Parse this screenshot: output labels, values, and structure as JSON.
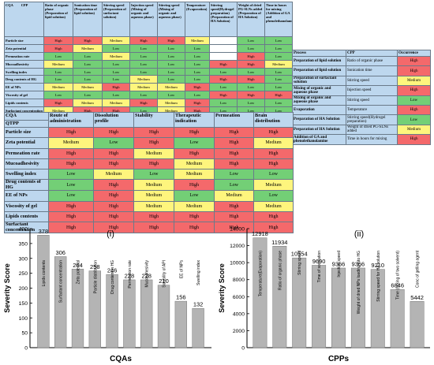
{
  "table1": {
    "headers": [
      "CQA",
      "CPP",
      "Ratio of organic phase (Preparation of lipid solution)",
      "Sonication time (Preparation of lipid solution)",
      "Stirring speed (Preparation of surfactant solution)",
      "Injection speed (Mixing of organic and aqueous phase)",
      "Stirring speed (Mixing of organic and aqueous phase)",
      "Temperature (Evaporation)",
      "Stirring speed(Hydrogel preparation) (Preparation of HA Solution)",
      "Weight of dried PG-SLNs added (Preparation of HA Solution)",
      "Time in hours for mixing (Addition of GA and phenolethanolamine)"
    ],
    "rows": [
      {
        "label": "Particle size",
        "cells": [
          "High",
          "High",
          "Medium",
          "High",
          "High",
          "Medium",
          "",
          "Low",
          "Low"
        ]
      },
      {
        "label": "Zeta potential",
        "cells": [
          "High",
          "Medium",
          "Low",
          "Low",
          "Low",
          "Low",
          "",
          "Low",
          "Low"
        ]
      },
      {
        "label": "Permeation rate",
        "cells": [
          "Low",
          "Low",
          "Medium",
          "Low",
          "Low",
          "Low",
          "",
          "High",
          "Low"
        ]
      },
      {
        "label": "Mucoadhesivity",
        "cells": [
          "Medium",
          "Low",
          "Low",
          "Low",
          "Low",
          "Low",
          "High",
          "High",
          "Medium"
        ]
      },
      {
        "label": "Swelling index",
        "cells": [
          "Low",
          "Low",
          "Low",
          "Low",
          "Low",
          "Low",
          "Low",
          "Low",
          "Low"
        ]
      },
      {
        "label": "Drug contents of HG",
        "cells": [
          "Low",
          "Low",
          "Low",
          "Medium",
          "Low",
          "Low",
          "High",
          "High",
          "Low"
        ]
      },
      {
        "label": "EE of NPs",
        "cells": [
          "Medium",
          "Medium",
          "High",
          "Medium",
          "Medium",
          "High",
          "Low",
          "Low",
          "Low"
        ]
      },
      {
        "label": "Viscosity of gel",
        "cells": [
          "Low",
          "Low",
          "Low",
          "Low",
          "Low",
          "Low",
          "High",
          "High",
          "High"
        ]
      },
      {
        "label": "Lipids contents",
        "cells": [
          "High",
          "Medium",
          "Medium",
          "High",
          "Medium",
          "High",
          "Low",
          "Low",
          "Low"
        ]
      },
      {
        "label": "Surfactant concentration",
        "cells": [
          "Medium",
          "High",
          "High",
          "Low",
          "Medium",
          "High",
          "Low",
          "Low",
          "Low"
        ]
      }
    ]
  },
  "table2": {
    "headers": [
      "CQA",
      "Route of administration",
      "Dissolution profile",
      "Stability",
      "Therapeutic indication",
      "Permeation",
      "Brain distribution"
    ],
    "subheader": "QTPP",
    "rows": [
      {
        "label": "Particle size",
        "cells": [
          "High",
          "High",
          "High",
          "High",
          "High",
          "High"
        ]
      },
      {
        "label": "Zeta potential",
        "cells": [
          "Medium",
          "Low",
          "High",
          "Low",
          "High",
          "Medium"
        ]
      },
      {
        "label": "Permeation rate",
        "cells": [
          "High",
          "High",
          "Medium",
          "High",
          "High",
          "High"
        ]
      },
      {
        "label": "Mucoadhesivity",
        "cells": [
          "High",
          "High",
          "High",
          "Medium",
          "High",
          "High"
        ]
      },
      {
        "label": "Swelling index",
        "cells": [
          "Low",
          "Medium",
          "Low",
          "Medium",
          "Low",
          "Low"
        ]
      },
      {
        "label": "Drug contents of HG",
        "cells": [
          "Low",
          "High",
          "Medium",
          "High",
          "Low",
          "Medium"
        ]
      },
      {
        "label": "EE of NPs",
        "cells": [
          "Low",
          "High",
          "Medium",
          "Low",
          "Medium",
          "Low"
        ]
      },
      {
        "label": "Viscosity of gel",
        "cells": [
          "High",
          "High",
          "Medium",
          "Medium",
          "High",
          "Medium"
        ]
      },
      {
        "label": "Lipids contents",
        "cells": [
          "High",
          "High",
          "High",
          "High",
          "High",
          "High"
        ]
      },
      {
        "label": "Surfactant concentration",
        "cells": [
          "High",
          "High",
          "High",
          "High",
          "High",
          "High"
        ]
      }
    ]
  },
  "table3": {
    "headers": [
      "Process",
      "CPP",
      "Occurrence"
    ],
    "rows": [
      {
        "process": "Preparation of lipid solution",
        "cpp": "Ratio of organic phase",
        "occ": "High"
      },
      {
        "process": "Preparation of lipid solution",
        "cpp": "Sonication time",
        "occ": "High"
      },
      {
        "process": "Preparation of surfactant solution",
        "cpp": "Stirring speed",
        "occ": "Medium"
      },
      {
        "process": "Mixing of organic and aqueous phase",
        "cpp": "Injection speed",
        "occ": "High"
      },
      {
        "process": "Mixing of organic and aqueous phase",
        "cpp": "Stirring speed",
        "occ": "Low"
      },
      {
        "process": "Evaporation",
        "cpp": "Temperature",
        "occ": "High"
      },
      {
        "process": "Preparation of HA Solution",
        "cpp": "Stirring speed(Hydrogel preparation)",
        "occ": "Low"
      },
      {
        "process": "Preparation of HA Solution",
        "cpp": "Weight of dried PG-SLNs added",
        "occ": "Medium"
      },
      {
        "process": "Addition of GA and phenolethanolamine",
        "cpp": "Time in hours for mixing",
        "occ": "High"
      }
    ]
  },
  "colors": {
    "High": "#f4696b",
    "Medium": "#fef57d",
    "Low": "#73cf76",
    "bar": "#b4b4b4",
    "header": "#bdd7ee"
  },
  "chart_data": [
    {
      "type": "bar",
      "panel": "(i)",
      "xlabel": "CQAs",
      "ylabel": "Severity Score",
      "ylim": [
        0,
        400
      ],
      "yticks": [
        0,
        50,
        100,
        150,
        200,
        250,
        300,
        350,
        400
      ],
      "categories": [
        "Lipids contents",
        "Surfactant concentration",
        "Zeta potential",
        "Particle distribution",
        "Drug content in HG",
        "Permeation rate",
        "Mucoadhesivity",
        "Solubility of API",
        "EE of NPs",
        "Swelling index"
      ],
      "values": [
        378,
        306,
        264,
        258,
        246,
        228,
        228,
        210,
        156,
        132
      ]
    },
    {
      "type": "bar",
      "panel": "(ii)",
      "xlabel": "CPPs",
      "ylabel": "Severity Score",
      "ylim": [
        0,
        14000
      ],
      "yticks": [
        0,
        2000,
        4000,
        6000,
        8000,
        10000,
        12000,
        14000
      ],
      "categories": [
        "Temperature(Evaporation)",
        "Ratio of organic phase",
        "Stirring speed",
        "Time of sonication",
        "Injection speed",
        "Weight of dried NPs loading into HG",
        "Stirring speed for HA solution",
        "Time (mixing of two solvent)",
        "Conc of gelling agent"
      ],
      "values": [
        12918,
        11934,
        10554,
        9690,
        9366,
        9366,
        9210,
        6846,
        5442
      ]
    }
  ]
}
